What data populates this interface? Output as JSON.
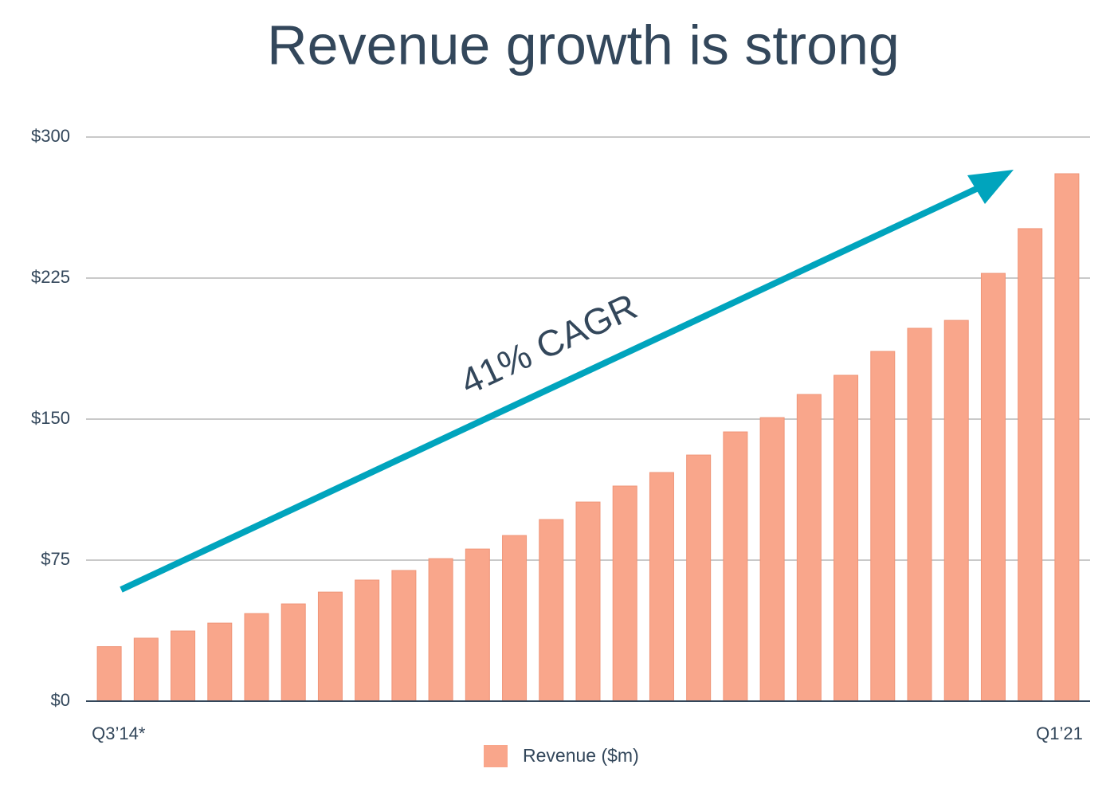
{
  "chart_data": {
    "type": "bar",
    "title": "Revenue growth is strong",
    "annotation": "41% CAGR",
    "categories": [
      "Q3’14*",
      null,
      null,
      null,
      null,
      null,
      null,
      null,
      null,
      null,
      null,
      null,
      null,
      null,
      null,
      null,
      null,
      null,
      null,
      null,
      null,
      null,
      null,
      null,
      null,
      null,
      "Q1’21"
    ],
    "series": [
      {
        "name": "Revenue ($m)",
        "color": "#f9a68b",
        "values": [
          29,
          33.5,
          37.3,
          41.5,
          46.6,
          51.7,
          58,
          64.4,
          69.5,
          75.8,
          80.9,
          88.1,
          96.6,
          105.9,
          114.4,
          121.6,
          130.9,
          143.2,
          150.8,
          163.1,
          173.3,
          186,
          198.3,
          202.5,
          227.5,
          251.3,
          280.5
        ]
      }
    ],
    "ylim": [
      0,
      300
    ],
    "yticks": [
      {
        "value": 0,
        "label": "$0"
      },
      {
        "value": 75,
        "label": "$75"
      },
      {
        "value": 150,
        "label": "$150"
      },
      {
        "value": 225,
        "label": "$225"
      },
      {
        "value": 300,
        "label": "$300"
      }
    ],
    "grid": true,
    "legend": "bottom"
  }
}
